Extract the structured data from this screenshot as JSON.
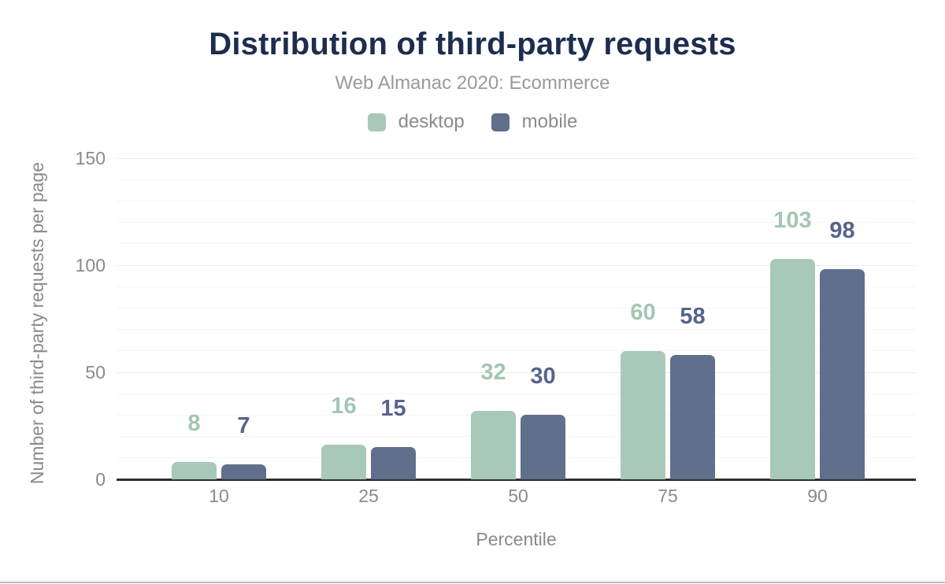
{
  "chart": {
    "title": "Distribution of third-party requests",
    "subtitle": "Web Almanac 2020: Ecommerce"
  },
  "chart_data": {
    "type": "bar",
    "categories": [
      "10",
      "25",
      "50",
      "75",
      "90"
    ],
    "series": [
      {
        "name": "desktop",
        "color": "#a8c9b9",
        "label_color": "#a3c6b3",
        "values": [
          8,
          16,
          32,
          60,
          103
        ]
      },
      {
        "name": "mobile",
        "color": "#5f6f8c",
        "label_color": "#56648c",
        "values": [
          7,
          15,
          30,
          58,
          98
        ]
      }
    ],
    "xlabel": "Percentile",
    "ylabel": "Number of third-party requests per page",
    "ylim": [
      0,
      150
    ],
    "yticks": [
      0,
      50,
      100,
      150
    ],
    "grid_step": 10,
    "grid": "on",
    "legend_position": "top"
  },
  "colors": {
    "title": "#1d2d4e",
    "subtitle": "#9a9a9a",
    "axis_text": "#8a8a8a",
    "legend_text": "#8b8b8b",
    "axis_line": "#2f2f2f",
    "gridline_minor": "#f6f6f6",
    "gridline_major": "#ececec",
    "background": "#ffffff",
    "bottom_rule": "#bdbdbd"
  }
}
